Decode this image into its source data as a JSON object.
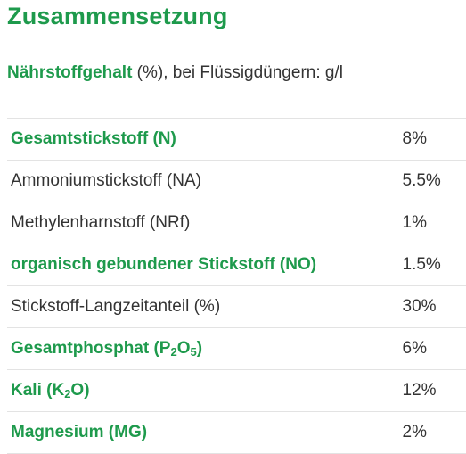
{
  "page": {
    "title": "Zusammensetzung"
  },
  "intro": {
    "bold_label": "Nährstoffgehalt",
    "rest": " (%), bei Flüssigdüngern: g/l"
  },
  "table": {
    "rows": [
      {
        "name": "Gesamtstickstoff (N)",
        "value": "8%",
        "emphasis": true
      },
      {
        "name": "Ammoniumstickstoff (NA)",
        "value": "5.5%",
        "emphasis": false
      },
      {
        "name": "Methylenharnstoff (NRf)",
        "value": "1%",
        "emphasis": false
      },
      {
        "name": "organisch gebundener Stickstoff (NO)",
        "value": "1.5%",
        "emphasis": true
      },
      {
        "name": "Stickstoff-Langzeitanteil (%)",
        "value": "30%",
        "emphasis": false
      },
      {
        "name_parts": [
          "Gesamtphosphat (P",
          "2",
          "O",
          "5",
          ")"
        ],
        "value": "6%",
        "emphasis": true
      },
      {
        "name_parts": [
          "Kali (K",
          "2",
          "O)"
        ],
        "value": "12%",
        "emphasis": true
      },
      {
        "name": "Magnesium (MG)",
        "value": "2%",
        "emphasis": true
      }
    ]
  }
}
